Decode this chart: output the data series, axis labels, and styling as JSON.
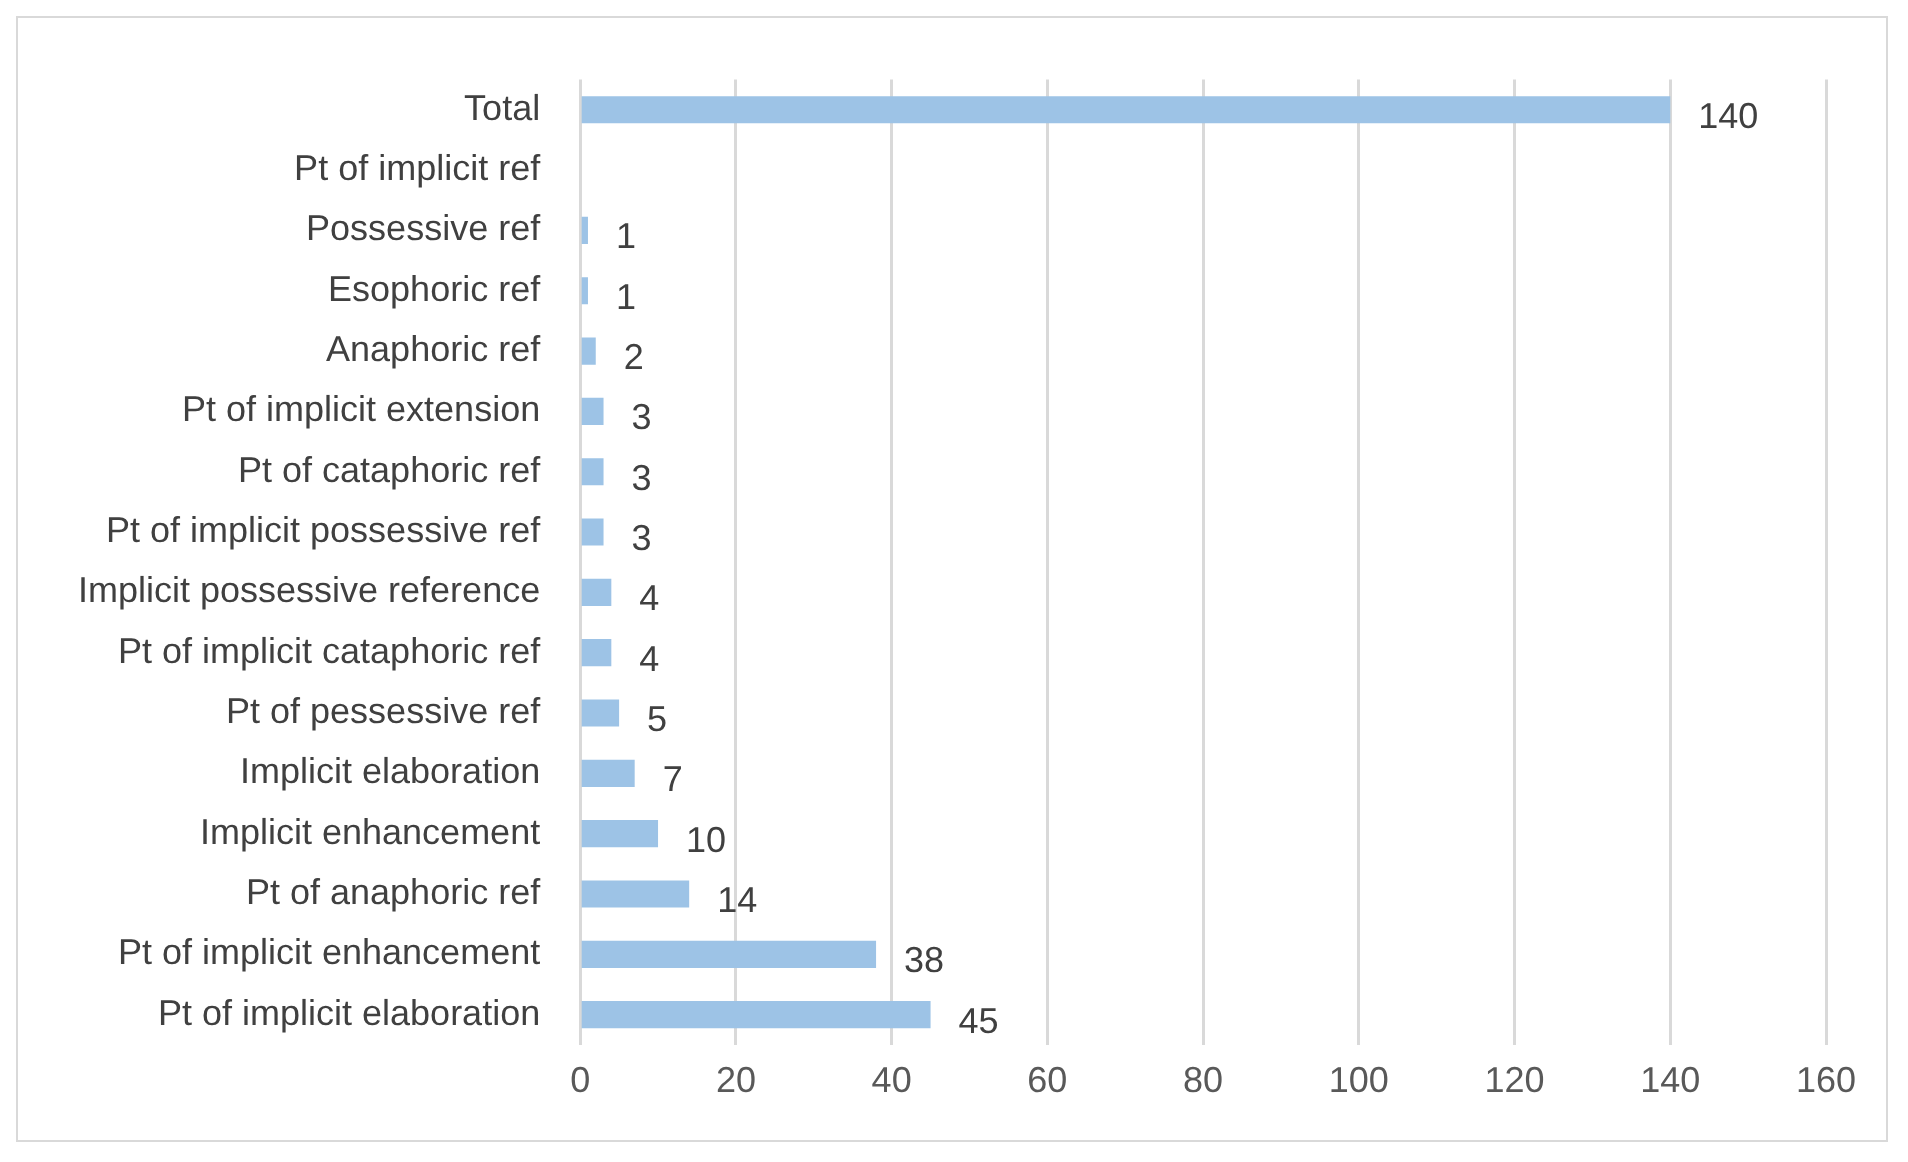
{
  "chart_data": {
    "type": "bar",
    "orientation": "horizontal",
    "categories": [
      "Total",
      "Pt of implicit ref",
      "Possessive ref",
      "Esophoric ref",
      "Anaphoric ref",
      "Pt of implicit extension",
      "Pt of cataphoric ref",
      "Pt of implicit possessive ref",
      "Implicit possessive reference",
      "Pt of implicit cataphoric ref",
      "Pt of pessessive ref",
      "Implicit elaboration",
      "Implicit enhancement",
      "Pt of anaphoric ref",
      "Pt of implicit enhancement",
      "Pt of implicit elaboration"
    ],
    "values": [
      140,
      null,
      1,
      1,
      2,
      3,
      3,
      3,
      4,
      4,
      5,
      7,
      10,
      14,
      38,
      45
    ],
    "color": "#9dc3e6",
    "xlim": [
      0,
      160
    ],
    "xticks": [
      0,
      20,
      40,
      60,
      80,
      100,
      120,
      140,
      160
    ],
    "grid": "x",
    "data_labels": true
  }
}
